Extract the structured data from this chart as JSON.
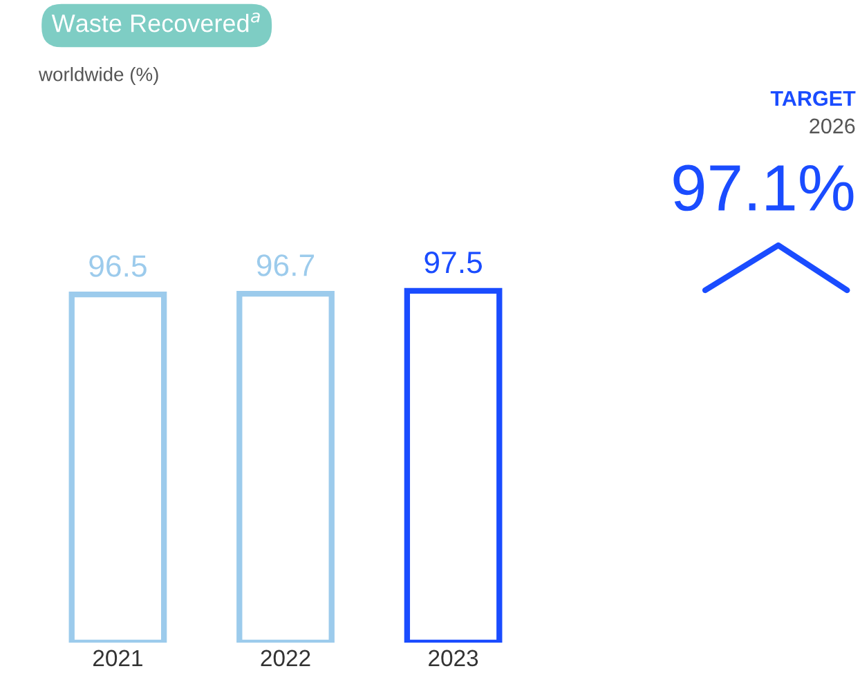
{
  "chart_data": {
    "type": "bar",
    "title": "Waste Recovered$^{a}$",
    "subtitle": "worldwide (%)",
    "categories": [
      "2021",
      "2022",
      "2023"
    ],
    "values": [
      96.5,
      96.7,
      97.5
    ],
    "colors": [
      "#9ccbec",
      "#9ccbec",
      "#1a4cff"
    ],
    "tick_labels": "x",
    "data_labels": true,
    "annotations": [
      "TARGET",
      "2026",
      "97.1%"
    ]
  }
}
